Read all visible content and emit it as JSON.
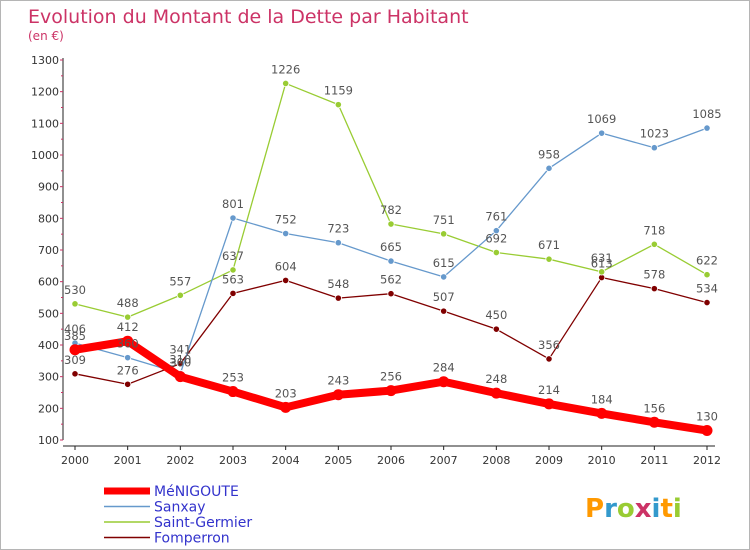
{
  "chart_data": {
    "type": "line",
    "title": "Evolution du Montant de la Dette par Habitant",
    "subtitle": "(en €)",
    "x": [
      "2000",
      "2001",
      "2002",
      "2003",
      "2004",
      "2005",
      "2006",
      "2007",
      "2008",
      "2009",
      "2010",
      "2011",
      "2012"
    ],
    "ylim": [
      100,
      1300
    ],
    "yticks": [
      100,
      200,
      300,
      400,
      500,
      600,
      700,
      800,
      900,
      1000,
      1100,
      1200,
      1300
    ],
    "grid": false,
    "legend_position": "bottom-left",
    "series": [
      {
        "name": "MéNIGOUTE",
        "color": "#ff0000",
        "values": [
          385,
          412,
          300,
          253,
          203,
          243,
          256,
          284,
          248,
          214,
          184,
          156,
          130
        ]
      },
      {
        "name": "Sanxay",
        "color": "#6699cc",
        "values": [
          406,
          360,
          310,
          801,
          752,
          723,
          665,
          615,
          761,
          958,
          1069,
          1023,
          1085
        ]
      },
      {
        "name": "Saint-Germier",
        "color": "#99cc33",
        "values": [
          530,
          488,
          557,
          637,
          1226,
          1159,
          782,
          751,
          692,
          671,
          631,
          718,
          622
        ]
      },
      {
        "name": "Fomperron",
        "color": "#800000",
        "values": [
          309,
          276,
          341,
          563,
          604,
          548,
          562,
          507,
          450,
          356,
          613,
          578,
          534
        ]
      }
    ]
  },
  "branding": {
    "text": "Proxiti"
  }
}
